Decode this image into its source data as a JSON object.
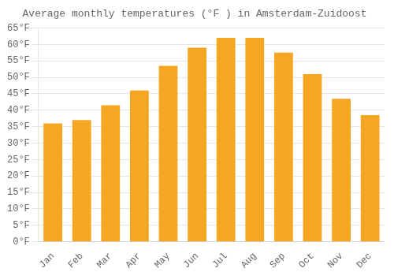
{
  "chart_data": {
    "type": "bar",
    "title": "Average monthly temperatures (°F ) in Amsterdam-Zuidoost",
    "categories": [
      "Jan",
      "Feb",
      "Mar",
      "Apr",
      "May",
      "Jun",
      "Jul",
      "Aug",
      "Sep",
      "Oct",
      "Nov",
      "Dec"
    ],
    "values": [
      36,
      37,
      41.5,
      46,
      53.5,
      59,
      62,
      62,
      57.5,
      51,
      43.5,
      38.5
    ],
    "color": "#F5A623",
    "ylim": [
      0,
      65
    ],
    "yticks": [
      {
        "value": 0,
        "label": "0°F"
      },
      {
        "value": 5,
        "label": "5°F"
      },
      {
        "value": 10,
        "label": "10°F"
      },
      {
        "value": 15,
        "label": "15°F"
      },
      {
        "value": 20,
        "label": "20°F"
      },
      {
        "value": 25,
        "label": "25°F"
      },
      {
        "value": 30,
        "label": "30°F"
      },
      {
        "value": 35,
        "label": "35°F"
      },
      {
        "value": 40,
        "label": "40°F"
      },
      {
        "value": 45,
        "label": "45°F"
      },
      {
        "value": 50,
        "label": "50°F"
      },
      {
        "value": 55,
        "label": "55°F"
      },
      {
        "value": 60,
        "label": "60°F"
      },
      {
        "value": 65,
        "label": "65°F"
      }
    ],
    "grid": true
  }
}
